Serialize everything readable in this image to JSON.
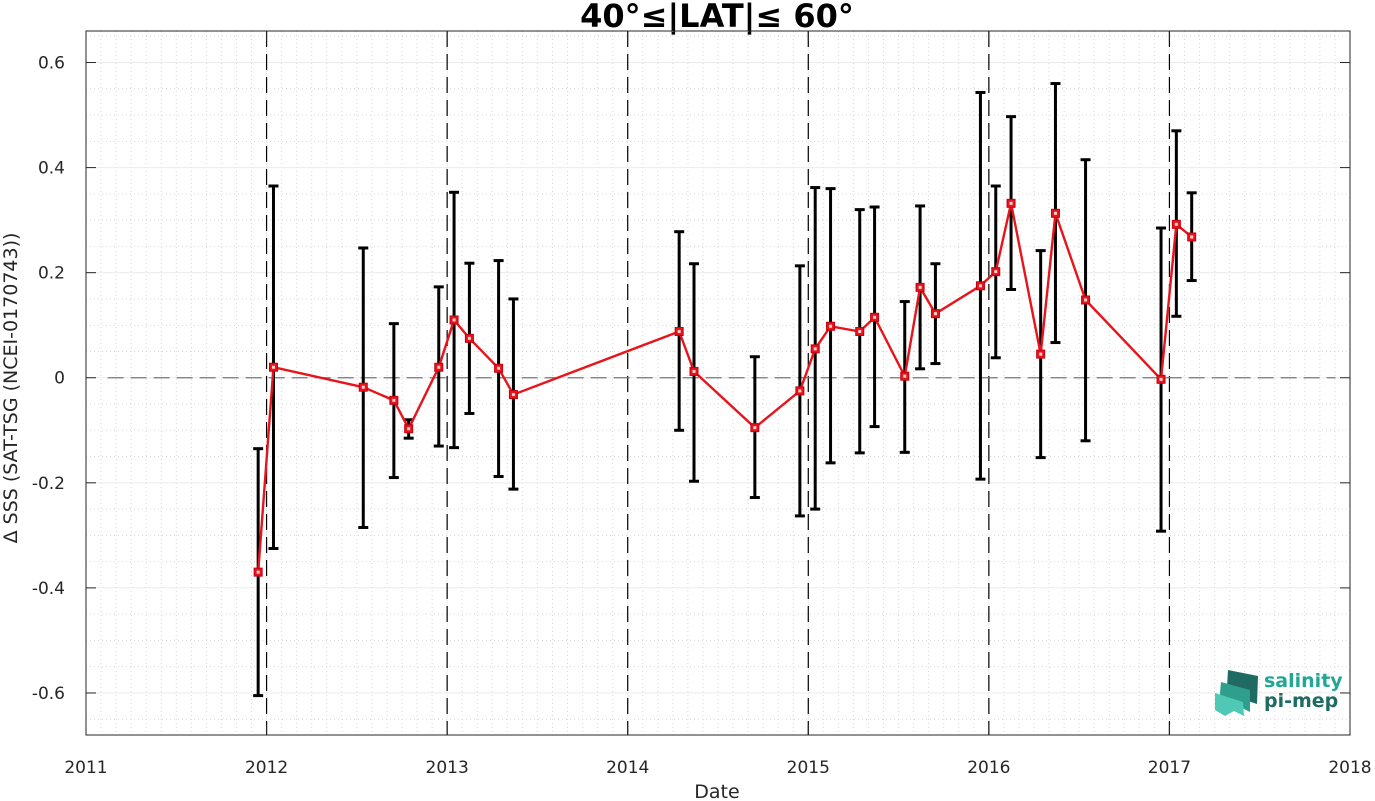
{
  "chart_data": {
    "type": "line",
    "title": "40°≤|LAT|≤ 60°",
    "xlabel": "Date",
    "ylabel": "Δ SSS (SAT-TSG (NCEI-0170743))",
    "xlim": [
      2011,
      2018
    ],
    "ylim": [
      -0.68,
      0.66
    ],
    "x_ticks": [
      "2011",
      "2012",
      "2013",
      "2014",
      "2015",
      "2016",
      "2017",
      "2018"
    ],
    "y_ticks": [
      {
        "value": 0.6,
        "label": "0.6"
      },
      {
        "value": 0.4,
        "label": "0.4"
      },
      {
        "value": 0.2,
        "label": "0.2"
      },
      {
        "value": 0,
        "label": "0"
      },
      {
        "value": -0.2,
        "label": "-0.2"
      },
      {
        "value": -0.4,
        "label": "-0.4"
      },
      {
        "value": -0.6,
        "label": "-0.6"
      }
    ],
    "grid": true,
    "year_boundaries": [
      2012,
      2013,
      2014,
      2015,
      2016,
      2017
    ],
    "zero_line": 0,
    "series": [
      {
        "color": "#e8141b",
        "errorbar_color": "#000000",
        "marker": "square",
        "points": [
          {
            "x": "2011-12-15",
            "y": -0.37,
            "low": -0.605,
            "high": -0.135
          },
          {
            "x": "2012-01-15",
            "y": 0.02,
            "low": -0.325,
            "high": 0.365
          },
          {
            "x": "2012-07-15",
            "y": -0.018,
            "low": -0.285,
            "high": 0.247
          },
          {
            "x": "2012-09-15",
            "y": -0.043,
            "low": -0.19,
            "high": 0.103
          },
          {
            "x": "2012-10-15",
            "y": -0.097,
            "low": -0.115,
            "high": -0.08
          },
          {
            "x": "2012-12-15",
            "y": 0.02,
            "low": -0.13,
            "high": 0.173
          },
          {
            "x": "2013-01-15",
            "y": 0.11,
            "low": -0.133,
            "high": 0.353
          },
          {
            "x": "2013-02-15",
            "y": 0.075,
            "low": -0.068,
            "high": 0.218
          },
          {
            "x": "2013-04-15",
            "y": 0.018,
            "low": -0.188,
            "high": 0.223
          },
          {
            "x": "2013-05-15",
            "y": -0.032,
            "low": -0.212,
            "high": 0.15
          },
          {
            "x": "2014-04-15",
            "y": 0.088,
            "low": -0.1,
            "high": 0.278
          },
          {
            "x": "2014-05-15",
            "y": 0.012,
            "low": -0.197,
            "high": 0.217
          },
          {
            "x": "2014-09-15",
            "y": -0.095,
            "low": -0.228,
            "high": 0.04
          },
          {
            "x": "2014-12-15",
            "y": -0.025,
            "low": -0.263,
            "high": 0.213
          },
          {
            "x": "2015-01-15",
            "y": 0.055,
            "low": -0.25,
            "high": 0.362
          },
          {
            "x": "2015-02-15",
            "y": 0.098,
            "low": -0.162,
            "high": 0.36
          },
          {
            "x": "2015-04-15",
            "y": 0.088,
            "low": -0.143,
            "high": 0.32
          },
          {
            "x": "2015-05-15",
            "y": 0.115,
            "low": -0.093,
            "high": 0.325
          },
          {
            "x": "2015-07-15",
            "y": 0.003,
            "low": -0.142,
            "high": 0.145
          },
          {
            "x": "2015-08-15",
            "y": 0.172,
            "low": 0.017,
            "high": 0.327
          },
          {
            "x": "2015-09-15",
            "y": 0.122,
            "low": 0.027,
            "high": 0.217
          },
          {
            "x": "2015-12-15",
            "y": 0.175,
            "low": -0.193,
            "high": 0.543
          },
          {
            "x": "2016-01-15",
            "y": 0.202,
            "low": 0.038,
            "high": 0.365
          },
          {
            "x": "2016-02-15",
            "y": 0.332,
            "low": 0.168,
            "high": 0.497
          },
          {
            "x": "2016-04-15",
            "y": 0.045,
            "low": -0.152,
            "high": 0.242
          },
          {
            "x": "2016-05-15",
            "y": 0.313,
            "low": 0.067,
            "high": 0.56
          },
          {
            "x": "2016-07-15",
            "y": 0.148,
            "low": -0.12,
            "high": 0.415
          },
          {
            "x": "2016-12-15",
            "y": -0.003,
            "low": -0.292,
            "high": 0.285
          },
          {
            "x": "2017-01-15",
            "y": 0.292,
            "low": 0.117,
            "high": 0.47
          },
          {
            "x": "2017-02-15",
            "y": 0.268,
            "low": 0.185,
            "high": 0.352
          }
        ]
      }
    ]
  },
  "logo": {
    "line1": "salinity",
    "line2": "pi-mep",
    "color_dark": "#1f6b63",
    "color_light": "#4fc9b5"
  }
}
